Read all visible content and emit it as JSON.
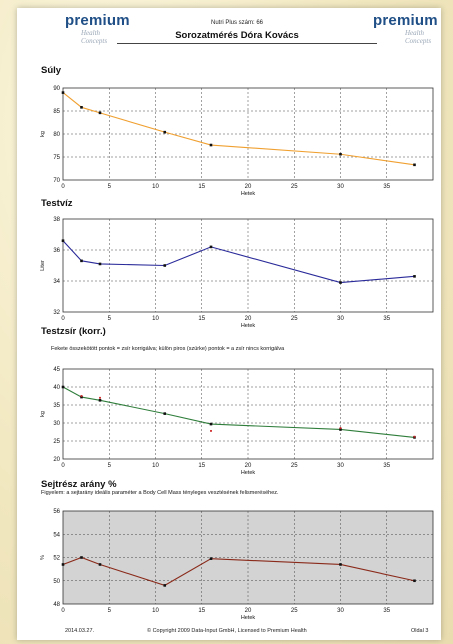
{
  "header": {
    "logo_line1": "premium",
    "logo_line2": "Health",
    "logo_line3": "Concepts",
    "subtitle": "Nutri Plus szám: 66",
    "title": "Sorozatmérés Dóra Kovács"
  },
  "footer": {
    "date": "2014.03.27.",
    "copyright": "© Copyright 2009 Data-Input GmbH, Licensed to Premium Health",
    "page": "Oldal 3"
  },
  "chart_data": [
    {
      "type": "line",
      "title": "Súly",
      "xlabel": "Hetek",
      "ylabel": "kg",
      "xlim": [
        0,
        40
      ],
      "ylim": [
        70,
        90
      ],
      "xticks": [
        0,
        5,
        10,
        15,
        20,
        25,
        30,
        35
      ],
      "yticks": [
        70,
        75,
        80,
        85,
        90
      ],
      "grid": true,
      "line_color": "#f0a030",
      "series": [
        {
          "x": [
            0,
            2,
            4,
            11,
            16,
            30,
            38
          ],
          "y": [
            89.0,
            85.8,
            84.6,
            80.4,
            77.6,
            75.6,
            73.3
          ]
        }
      ]
    },
    {
      "type": "line",
      "title": "Testvíz",
      "xlabel": "Hetek",
      "ylabel": "Liter",
      "xlim": [
        0,
        40
      ],
      "ylim": [
        32,
        38
      ],
      "xticks": [
        0,
        5,
        10,
        15,
        20,
        25,
        30,
        35
      ],
      "yticks": [
        32,
        34,
        36,
        38
      ],
      "grid": true,
      "line_color": "#2a2a9a",
      "series": [
        {
          "x": [
            0,
            2,
            4,
            11,
            16,
            30,
            38
          ],
          "y": [
            36.6,
            35.3,
            35.1,
            35.0,
            36.2,
            33.9,
            34.3
          ]
        }
      ]
    },
    {
      "type": "line",
      "title": "Testzsír (korr.)",
      "note": "Fekete összekötött pontok = zsír korrigálva; külön piros (szürke) pontok = a zsír nincs korrigálva",
      "xlabel": "Hetek",
      "ylabel": "kg",
      "xlim": [
        0,
        40
      ],
      "ylim": [
        20,
        45
      ],
      "xticks": [
        0,
        5,
        10,
        15,
        20,
        25,
        30,
        35
      ],
      "yticks": [
        20,
        25,
        30,
        35,
        40,
        45
      ],
      "grid": true,
      "line_color": "#2e7d3a",
      "series": [
        {
          "x": [
            0,
            2,
            4,
            11,
            16,
            30,
            38
          ],
          "y": [
            40.0,
            37.2,
            36.3,
            32.6,
            29.7,
            28.2,
            26.0
          ]
        }
      ],
      "uncorrected_points": {
        "x": [
          2,
          4,
          16,
          30,
          38
        ],
        "y": [
          37.5,
          37.0,
          27.8,
          28.6,
          26.2
        ],
        "color": "#cc2020"
      }
    },
    {
      "type": "line",
      "title": "Sejtrész arány %",
      "note": "Figyelem: a sejtarány ideális paraméter a Body Cell Mass tényleges vesztésének felismeréséhez.",
      "xlabel": "Hetek",
      "ylabel": "%",
      "xlim": [
        0,
        40
      ],
      "ylim": [
        48,
        56
      ],
      "xticks": [
        0,
        5,
        10,
        15,
        20,
        25,
        30,
        35
      ],
      "yticks": [
        48,
        50,
        52,
        54,
        56
      ],
      "grid": true,
      "background_color": "#d3d3d3",
      "line_color": "#8a2a1a",
      "series": [
        {
          "x": [
            0,
            2,
            4,
            11,
            16,
            30,
            38
          ],
          "y": [
            51.4,
            52.0,
            51.4,
            49.6,
            51.9,
            51.4,
            50.0
          ]
        }
      ]
    }
  ]
}
